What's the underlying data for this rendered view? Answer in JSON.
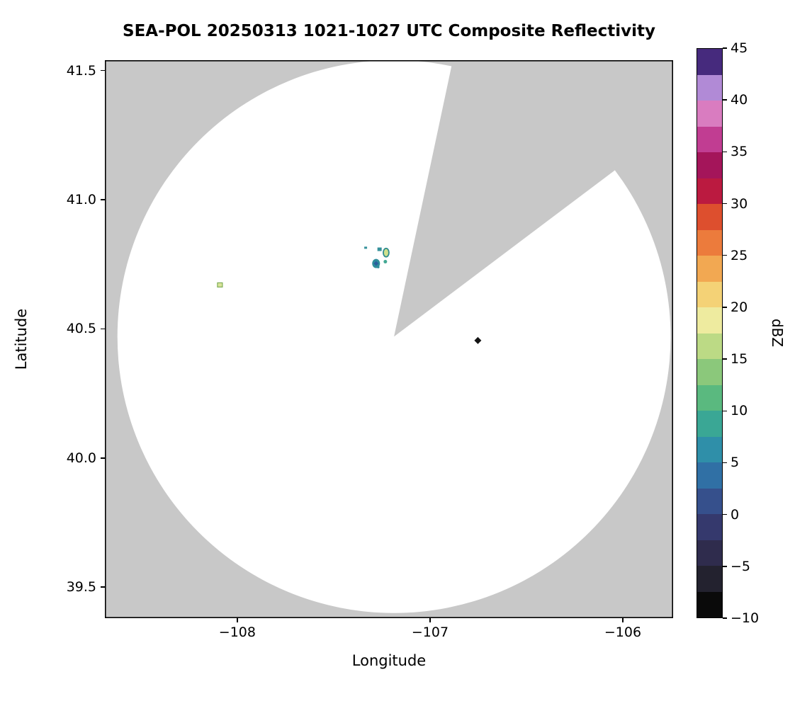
{
  "chart_data": {
    "type": "heatmap",
    "subtype": "radar-composite-reflectivity-ppi",
    "title": "SEA-POL 20250313 1021-1027 UTC Composite Reflectivity",
    "xlabel": "Longitude",
    "ylabel": "Latitude",
    "xlim": [
      -108.687,
      -105.739
    ],
    "ylim": [
      39.38,
      41.54
    ],
    "grid": false,
    "xticks": [
      {
        "value": -108,
        "label": "−108"
      },
      {
        "value": -107,
        "label": "−107"
      },
      {
        "value": -106,
        "label": "−106"
      }
    ],
    "yticks": [
      {
        "value": 41.5,
        "label": "41.5"
      },
      {
        "value": 41.0,
        "label": "41.0"
      },
      {
        "value": 40.5,
        "label": "40.5"
      },
      {
        "value": 40.0,
        "label": "40.0"
      },
      {
        "value": 39.5,
        "label": "39.5"
      }
    ],
    "colors": {
      "masked": "#c8c8c8",
      "coverage_fill": "#ffffff",
      "axis": "#000000"
    },
    "coverage": {
      "center_lon": -107.187,
      "center_lat": 40.47,
      "radius_deg_lat": 1.07,
      "missing_sector_azimuth_deg": [
        12,
        53
      ]
    },
    "points": [
      {
        "lon": -108.09,
        "lat": 40.67,
        "shape": "square",
        "w": 7,
        "h": 6,
        "fill": "#d9e39a",
        "stroke": "#7fae57",
        "note": "isolated ~15 dBZ echo"
      },
      {
        "lon": -107.334,
        "lat": 40.814,
        "shape": "square",
        "w": 4,
        "h": 3,
        "fill": "#35919b",
        "stroke": "none",
        "note": "weak echo ~7 dBZ"
      },
      {
        "lon": -107.262,
        "lat": 40.808,
        "shape": "square",
        "w": 6,
        "h": 5,
        "fill": "#35919b",
        "stroke": "none",
        "note": "weak echo ~7 dBZ"
      },
      {
        "lon": -107.228,
        "lat": 40.795,
        "shape": "ring",
        "w": 8,
        "h": 12,
        "fill": "#cfe08c",
        "stroke": "#2f8d8f",
        "note": "echo core ~13 dBZ ringed by ~8 dBZ"
      },
      {
        "lon": -107.28,
        "lat": 40.753,
        "shape": "cluster",
        "w": 11,
        "h": 13,
        "fill": "#2f8d9b",
        "stroke": "#2b5f9e",
        "note": "weak echo cluster ~5 dBZ"
      },
      {
        "lon": -107.232,
        "lat": 40.76,
        "shape": "dot",
        "w": 5,
        "h": 5,
        "fill": "#43a893",
        "stroke": "none",
        "note": "weak echo ~8 dBZ"
      },
      {
        "lon": -106.752,
        "lat": 40.455,
        "shape": "diamond",
        "w": 10,
        "h": 10,
        "fill": "#141414",
        "stroke": "none",
        "note": "near minimum ~-10 dBZ speck"
      }
    ],
    "colorbar": {
      "label": "dBZ",
      "min": -10,
      "max": 45,
      "band_step": 2.5,
      "band_colors_bottom_to_top": [
        "#0a0a0a",
        "#23222f",
        "#2f2c4d",
        "#35396d",
        "#36508c",
        "#3070a5",
        "#2f8fa9",
        "#3aa795",
        "#5ab97f",
        "#8bc87b",
        "#bcda85",
        "#eeeb9f",
        "#f4d276",
        "#f2a852",
        "#ec7b3c",
        "#dd4f2e",
        "#bb1a40",
        "#a4155a",
        "#c13d92",
        "#d97cc0",
        "#b18ad6",
        "#462a7d"
      ],
      "ticks": [
        {
          "value": 45,
          "label": "45"
        },
        {
          "value": 40,
          "label": "40"
        },
        {
          "value": 35,
          "label": "35"
        },
        {
          "value": 30,
          "label": "30"
        },
        {
          "value": 25,
          "label": "25"
        },
        {
          "value": 20,
          "label": "20"
        },
        {
          "value": 15,
          "label": "15"
        },
        {
          "value": 10,
          "label": "10"
        },
        {
          "value": 5,
          "label": "5"
        },
        {
          "value": 0,
          "label": "0"
        },
        {
          "value": -5,
          "label": "−5"
        },
        {
          "value": -10,
          "label": "−10"
        }
      ]
    }
  }
}
